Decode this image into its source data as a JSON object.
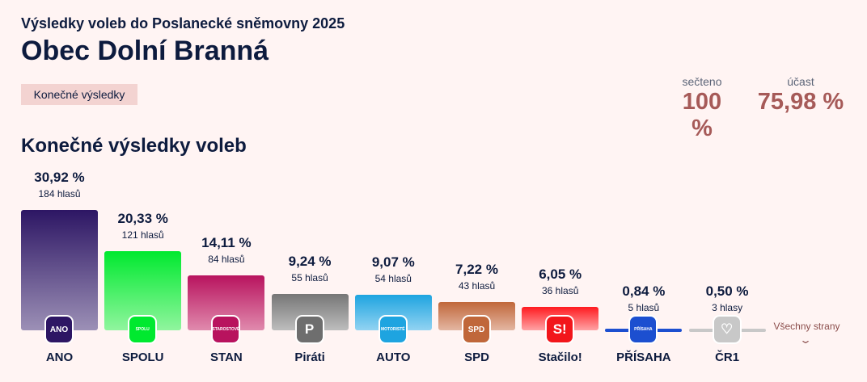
{
  "header": {
    "supertitle": "Výsledky voleb do Poslanecké sněmovny 2025",
    "title": "Obec Dolní Branná",
    "badge": "Konečné výsledky"
  },
  "stats": [
    {
      "label": "sečteno",
      "value": "100 %"
    },
    {
      "label": "účast",
      "value": "75,98 %"
    }
  ],
  "section_title": "Konečné výsledky voleb",
  "parties": [
    {
      "name": "ANO",
      "pct": 30.92,
      "pct_label": "30,92 %",
      "votes": "184 hlasů",
      "logo": "ANO",
      "colors": [
        "#2d1664",
        "#9c90b6"
      ],
      "logo_color": "#2d1664"
    },
    {
      "name": "SPOLU",
      "pct": 20.33,
      "pct_label": "20,33 %",
      "votes": "121 hlasů",
      "logo": "SPOLU",
      "colors": [
        "#00e92f",
        "#90f59e"
      ],
      "logo_color": "#00e92f"
    },
    {
      "name": "STAN",
      "pct": 14.11,
      "pct_label": "14,11 %",
      "votes": "84 hlasů",
      "logo": "STAROSTOVÉ",
      "colors": [
        "#b8135e",
        "#e08aad"
      ],
      "logo_color": "#b8135e"
    },
    {
      "name": "Piráti",
      "pct": 9.24,
      "pct_label": "9,24 %",
      "votes": "55 hlasů",
      "logo": "P",
      "colors": [
        "#767676",
        "#bdbdbd"
      ],
      "logo_color": "#6e6e6e"
    },
    {
      "name": "AUTO",
      "pct": 9.07,
      "pct_label": "9,07 %",
      "votes": "54 hlasů",
      "logo": "MOTORISTÉ",
      "colors": [
        "#1ea4e0",
        "#92d3f2"
      ],
      "logo_color": "#1ea4e0"
    },
    {
      "name": "SPD",
      "pct": 7.22,
      "pct_label": "7,22 %",
      "votes": "43 hlasů",
      "logo": "SPD",
      "colors": [
        "#c0673a",
        "#e3b6a2"
      ],
      "logo_color": "#c0673a"
    },
    {
      "name": "Stačilo!",
      "pct": 6.05,
      "pct_label": "6,05 %",
      "votes": "36 hlasů",
      "logo": "S!",
      "colors": [
        "#ff1a1f",
        "#ffa3a5"
      ],
      "logo_color": "#f2161b"
    },
    {
      "name": "PŘÍSAHA",
      "pct": 0.84,
      "pct_label": "0,84 %",
      "votes": "5 hlasů",
      "logo": "PŘÍSAHA",
      "colors": [
        "#1c4fd0",
        "#1c4fd0"
      ],
      "logo_color": "#1c4fd0"
    },
    {
      "name": "ČR1",
      "pct": 0.5,
      "pct_label": "0,50 %",
      "votes": "3 hlasy",
      "logo": "♡",
      "colors": [
        "#c8c8c8",
        "#c8c8c8"
      ],
      "logo_color": "#c8c8c8"
    }
  ],
  "more": {
    "label": "Všechny strany",
    "icon": "chevron-down-icon"
  }
}
